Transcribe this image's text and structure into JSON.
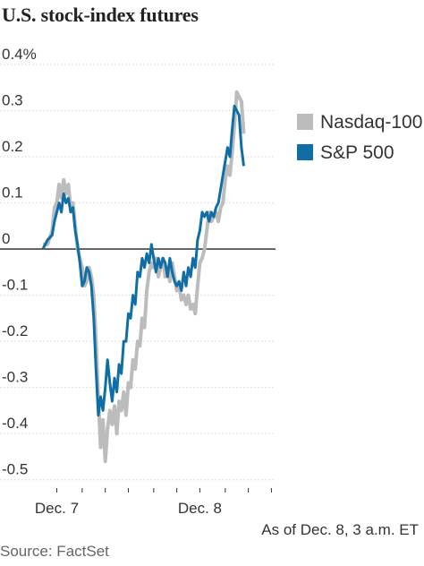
{
  "title": "U.S. stock-index futures",
  "legend": [
    {
      "name": "Nasdaq-100",
      "color": "#bcbcbc"
    },
    {
      "name": "S&P 500",
      "color": "#0f6ea6"
    }
  ],
  "asof": "As of Dec. 8, 3 a.m. ET",
  "source": "Source: FactSet",
  "chart_data": {
    "type": "line",
    "title": "U.S. stock-index futures",
    "ylim": [
      -0.52,
      0.4
    ],
    "yticks": [
      0.4,
      0.3,
      0.2,
      0.1,
      0,
      -0.1,
      -0.2,
      -0.3,
      -0.4,
      -0.5
    ],
    "ytick_labels": [
      "0.4%",
      "0.3",
      "0.2",
      "0.1",
      "0",
      "-0.1",
      "-0.2",
      "-0.3",
      "-0.4",
      "-0.5"
    ],
    "xlim": [
      0,
      100
    ],
    "xtick_labels": [
      {
        "label": "Dec. 7",
        "x": 6
      },
      {
        "label": "Dec. 8",
        "x": 68
      }
    ],
    "minor_x_ticks": [
      6,
      17,
      27,
      37,
      48,
      58,
      68,
      79,
      89,
      99
    ],
    "zero_line": true,
    "series": [
      {
        "name": "Nasdaq-100",
        "color": "#bcbcbc",
        "points": [
          [
            0,
            0.01
          ],
          [
            2,
            0.01
          ],
          [
            4,
            0.04
          ],
          [
            5,
            0.09
          ],
          [
            6,
            0.1
          ],
          [
            7,
            0.14
          ],
          [
            8,
            0.11
          ],
          [
            9,
            0.15
          ],
          [
            10,
            0.12
          ],
          [
            11,
            0.14
          ],
          [
            12,
            0.09
          ],
          [
            13,
            0.1
          ],
          [
            14,
            0.05
          ],
          [
            15,
            0.0
          ],
          [
            16,
            -0.02
          ],
          [
            17,
            -0.04
          ],
          [
            18,
            -0.08
          ],
          [
            19,
            -0.07
          ],
          [
            20,
            -0.04
          ],
          [
            21,
            -0.06
          ],
          [
            22,
            -0.1
          ],
          [
            23,
            -0.2
          ],
          [
            24,
            -0.32
          ],
          [
            25,
            -0.43
          ],
          [
            26,
            -0.37
          ],
          [
            27,
            -0.46
          ],
          [
            28,
            -0.39
          ],
          [
            29,
            -0.35
          ],
          [
            30,
            -0.38
          ],
          [
            31,
            -0.34
          ],
          [
            32,
            -0.4
          ],
          [
            33,
            -0.33
          ],
          [
            34,
            -0.35
          ],
          [
            35,
            -0.31
          ],
          [
            36,
            -0.36
          ],
          [
            37,
            -0.29
          ],
          [
            38,
            -0.3
          ],
          [
            39,
            -0.24
          ],
          [
            40,
            -0.26
          ],
          [
            41,
            -0.2
          ],
          [
            42,
            -0.21
          ],
          [
            43,
            -0.15
          ],
          [
            44,
            -0.17
          ],
          [
            45,
            -0.09
          ],
          [
            46,
            -0.05
          ],
          [
            47,
            -0.03
          ],
          [
            48,
            -0.04
          ],
          [
            49,
            -0.02
          ],
          [
            50,
            -0.06
          ],
          [
            51,
            -0.04
          ],
          [
            52,
            -0.02
          ],
          [
            53,
            -0.06
          ],
          [
            54,
            -0.04
          ],
          [
            55,
            -0.07
          ],
          [
            56,
            -0.03
          ],
          [
            57,
            -0.06
          ],
          [
            58,
            -0.09
          ],
          [
            59,
            -0.08
          ],
          [
            60,
            -0.11
          ],
          [
            61,
            -0.1
          ],
          [
            62,
            -0.12
          ],
          [
            63,
            -0.1
          ],
          [
            64,
            -0.13
          ],
          [
            65,
            -0.12
          ],
          [
            66,
            -0.14
          ],
          [
            67,
            -0.08
          ],
          [
            68,
            -0.03
          ],
          [
            69,
            -0.02
          ],
          [
            70,
            0.0
          ],
          [
            71,
            0.04
          ],
          [
            72,
            0.08
          ],
          [
            73,
            0.06
          ],
          [
            74,
            0.07
          ],
          [
            75,
            0.08
          ],
          [
            76,
            0.06
          ],
          [
            77,
            0.09
          ],
          [
            78,
            0.1
          ],
          [
            79,
            0.15
          ],
          [
            80,
            0.18
          ],
          [
            81,
            0.16
          ],
          [
            82,
            0.21
          ],
          [
            83,
            0.27
          ],
          [
            84,
            0.34
          ],
          [
            85,
            0.33
          ],
          [
            86,
            0.32
          ],
          [
            87,
            0.25
          ]
        ]
      },
      {
        "name": "S&P 500",
        "color": "#0f6ea6",
        "points": [
          [
            0,
            0.0
          ],
          [
            2,
            0.02
          ],
          [
            4,
            0.03
          ],
          [
            5,
            0.06
          ],
          [
            6,
            0.08
          ],
          [
            7,
            0.1
          ],
          [
            8,
            0.08
          ],
          [
            9,
            0.12
          ],
          [
            10,
            0.1
          ],
          [
            11,
            0.11
          ],
          [
            12,
            0.08
          ],
          [
            13,
            0.09
          ],
          [
            14,
            0.04
          ],
          [
            15,
            0.01
          ],
          [
            16,
            -0.03
          ],
          [
            17,
            -0.08
          ],
          [
            18,
            -0.07
          ],
          [
            19,
            -0.04
          ],
          [
            20,
            -0.05
          ],
          [
            21,
            -0.08
          ],
          [
            22,
            -0.15
          ],
          [
            23,
            -0.26
          ],
          [
            24,
            -0.36
          ],
          [
            25,
            -0.32
          ],
          [
            26,
            -0.35
          ],
          [
            27,
            -0.3
          ],
          [
            28,
            -0.24
          ],
          [
            29,
            -0.29
          ],
          [
            30,
            -0.33
          ],
          [
            31,
            -0.28
          ],
          [
            32,
            -0.31
          ],
          [
            33,
            -0.25
          ],
          [
            34,
            -0.27
          ],
          [
            35,
            -0.2
          ],
          [
            36,
            -0.2
          ],
          [
            37,
            -0.14
          ],
          [
            38,
            -0.15
          ],
          [
            39,
            -0.1
          ],
          [
            40,
            -0.12
          ],
          [
            41,
            -0.05
          ],
          [
            42,
            -0.06
          ],
          [
            43,
            -0.02
          ],
          [
            44,
            -0.04
          ],
          [
            45,
            -0.01
          ],
          [
            46,
            -0.03
          ],
          [
            47,
            0.01
          ],
          [
            48,
            -0.02
          ],
          [
            49,
            -0.05
          ],
          [
            50,
            -0.02
          ],
          [
            51,
            -0.04
          ],
          [
            52,
            -0.02
          ],
          [
            53,
            -0.03
          ],
          [
            54,
            -0.06
          ],
          [
            55,
            -0.02
          ],
          [
            56,
            -0.05
          ],
          [
            57,
            -0.07
          ],
          [
            58,
            -0.08
          ],
          [
            59,
            -0.07
          ],
          [
            60,
            -0.09
          ],
          [
            61,
            -0.05
          ],
          [
            62,
            -0.08
          ],
          [
            63,
            -0.04
          ],
          [
            64,
            -0.06
          ],
          [
            65,
            -0.02
          ],
          [
            66,
            -0.04
          ],
          [
            67,
            0.02
          ],
          [
            68,
            0.04
          ],
          [
            69,
            0.08
          ],
          [
            70,
            0.07
          ],
          [
            71,
            0.08
          ],
          [
            72,
            0.06
          ],
          [
            73,
            0.08
          ],
          [
            74,
            0.07
          ],
          [
            75,
            0.09
          ],
          [
            76,
            0.1
          ],
          [
            77,
            0.13
          ],
          [
            78,
            0.16
          ],
          [
            79,
            0.19
          ],
          [
            80,
            0.22
          ],
          [
            81,
            0.2
          ],
          [
            82,
            0.26
          ],
          [
            83,
            0.31
          ],
          [
            84,
            0.3
          ],
          [
            85,
            0.29
          ],
          [
            86,
            0.22
          ],
          [
            87,
            0.18
          ]
        ]
      }
    ]
  }
}
